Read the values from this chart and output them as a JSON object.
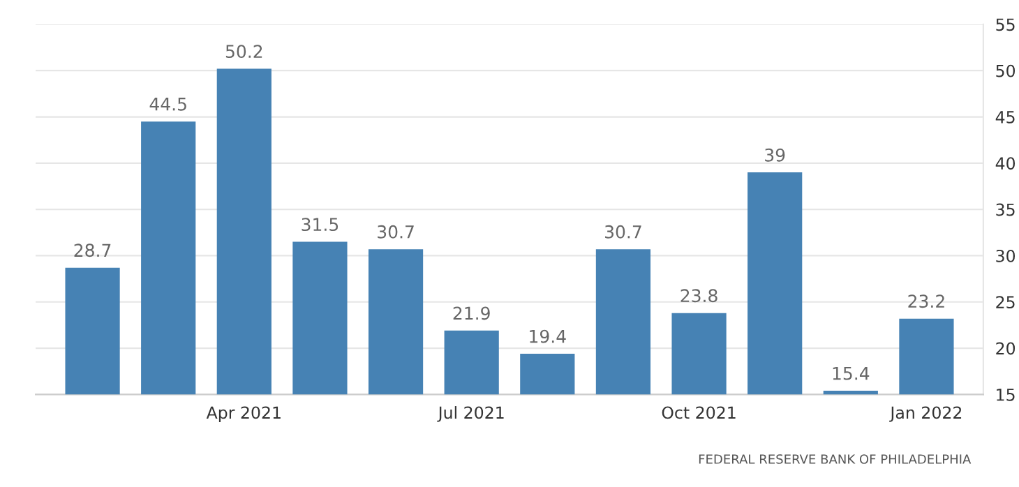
{
  "chart_data": {
    "type": "bar",
    "categories": [
      null,
      null,
      "Apr 2021",
      null,
      null,
      "Jul 2021",
      null,
      null,
      "Oct 2021",
      null,
      null,
      "Jan 2022"
    ],
    "values": [
      28.7,
      44.5,
      50.2,
      31.5,
      30.7,
      21.9,
      19.4,
      30.7,
      23.8,
      39,
      15.4,
      23.2
    ],
    "color": "#4682b4",
    "data_labels": true,
    "ylim": [
      15,
      55
    ],
    "yticks": [
      15,
      20,
      25,
      30,
      35,
      40,
      45,
      50,
      55
    ],
    "grid": "y",
    "annotations": [
      "FEDERAL RESERVE BANK OF PHILADELPHIA"
    ]
  }
}
